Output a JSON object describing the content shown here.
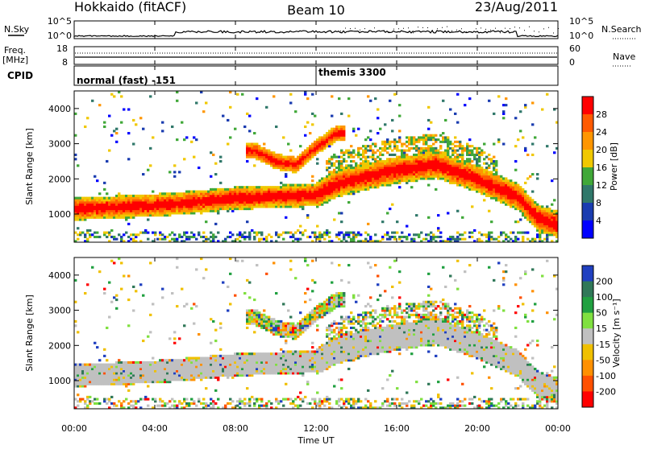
{
  "header": {
    "station": "Hokkaido (fitACF)",
    "beam": "Beam 10",
    "date": "23/Aug/2011"
  },
  "panels": {
    "nsky": {
      "left_label": "N.Sky",
      "right_label": "N.Search",
      "left_ticks": [
        "10^5",
        "10^0"
      ],
      "right_ticks": [
        "10^5",
        "10^0"
      ]
    },
    "freq": {
      "left_label_line1": "Freq.",
      "left_label_line2": "[MHz]",
      "left_ticks": [
        "18",
        "8"
      ],
      "right_label": "Nave",
      "right_ticks": [
        "60",
        "0"
      ]
    },
    "cpid": {
      "label": "CPID",
      "programs": [
        "normal (fast) -151",
        "themis 3300"
      ]
    }
  },
  "power_panel": {
    "ylabel": "Slant Range [km]",
    "cbar_label": "Power [dB]",
    "cbar_ticks": [
      "28",
      "24",
      "20",
      "16",
      "12",
      "8",
      "4"
    ],
    "cbar_colors": [
      "#ff0000",
      "#ff5a00",
      "#ff9600",
      "#f0c800",
      "#40a838",
      "#30786a",
      "#1a3cb0",
      "#0000ff"
    ]
  },
  "velocity_panel": {
    "ylabel": "Slant Range [km]",
    "cbar_label": "Velocity [m s⁻¹]",
    "cbar_ticks": [
      "200",
      "100",
      "50",
      "15",
      "-15",
      "-50",
      "-100",
      "-200"
    ],
    "cbar_colors": [
      "#2040c0",
      "#307858",
      "#20a040",
      "#80e040",
      "#c0c0c0",
      "#f0c000",
      "#ff9000",
      "#ff5000",
      "#ff0000"
    ]
  },
  "x_axis": {
    "label": "Time UT",
    "ticks": [
      "00:00",
      "04:00",
      "08:00",
      "12:00",
      "16:00",
      "20:00",
      "00:00"
    ]
  },
  "chart_data": [
    {
      "type": "heatmap",
      "title": "Power",
      "xlabel": "Time UT",
      "ylabel": "Slant Range [km]",
      "ylim": [
        200,
        4500
      ],
      "xlim": [
        "00:00",
        "24:00"
      ],
      "colorbar": "Power [dB]",
      "colorbar_range": [
        0,
        30
      ],
      "y_ticks": [
        1000,
        2000,
        3000,
        4000
      ],
      "main_echo_band": {
        "time_h": [
          0,
          2,
          4,
          6,
          8,
          10,
          12,
          13,
          14,
          16,
          18,
          20,
          22,
          23,
          24
        ],
        "range_km": [
          1150,
          1200,
          1250,
          1350,
          1450,
          1500,
          1550,
          1850,
          2000,
          2250,
          2400,
          2000,
          1500,
          900,
          700
        ]
      },
      "upper_echo_band": {
        "time_h": [
          9,
          10,
          11,
          12,
          13
        ],
        "range_km": [
          2800,
          2500,
          2400,
          2900,
          3300
        ]
      }
    },
    {
      "type": "heatmap",
      "title": "Velocity",
      "xlabel": "Time UT",
      "ylabel": "Slant Range [km]",
      "ylim": [
        200,
        4500
      ],
      "xlim": [
        "00:00",
        "24:00"
      ],
      "colorbar": "Velocity [m s-1]",
      "colorbar_levels": [
        200,
        100,
        50,
        15,
        -15,
        -50,
        -100,
        -200
      ],
      "y_ticks": [
        1000,
        2000,
        3000,
        4000
      ]
    }
  ]
}
